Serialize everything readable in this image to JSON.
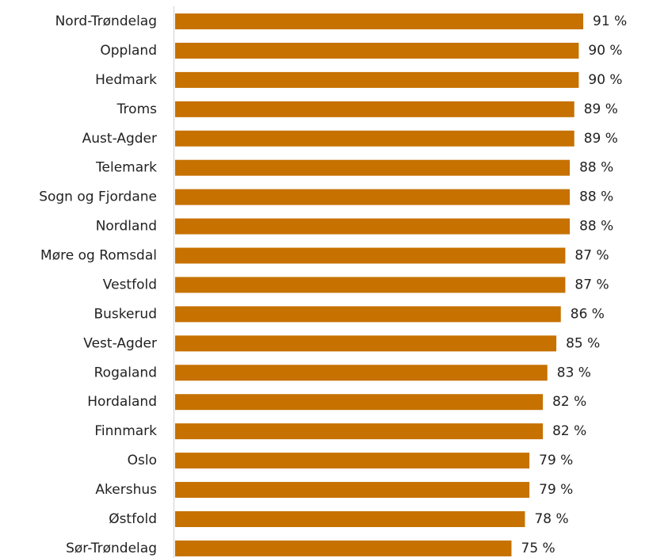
{
  "chart_data": {
    "type": "barh",
    "categories": [
      "Nord-Trøndelag",
      "Oppland",
      "Hedmark",
      "Troms",
      "Aust-Agder",
      "Telemark",
      "Sogn og Fjordane",
      "Nordland",
      "Møre og Romsdal",
      "Vestfold",
      "Buskerud",
      "Vest-Agder",
      "Rogaland",
      "Hordaland",
      "Finnmark",
      "Oslo",
      "Akershus",
      "Østfold",
      "Sør-Trøndelag"
    ],
    "values": [
      91,
      90,
      90,
      89,
      89,
      88,
      88,
      88,
      87,
      87,
      86,
      85,
      83,
      82,
      82,
      79,
      79,
      78,
      75
    ],
    "value_labels": [
      "91 %",
      "90 %",
      "90 %",
      "89 %",
      "89 %",
      "88 %",
      "88 %",
      "88 %",
      "87 %",
      "87 %",
      "86 %",
      "85 %",
      "83 %",
      "82 %",
      "82 %",
      "79 %",
      "79 %",
      "78 %",
      "75 %"
    ],
    "color": "#c67100",
    "xlim": [
      0,
      100
    ]
  }
}
